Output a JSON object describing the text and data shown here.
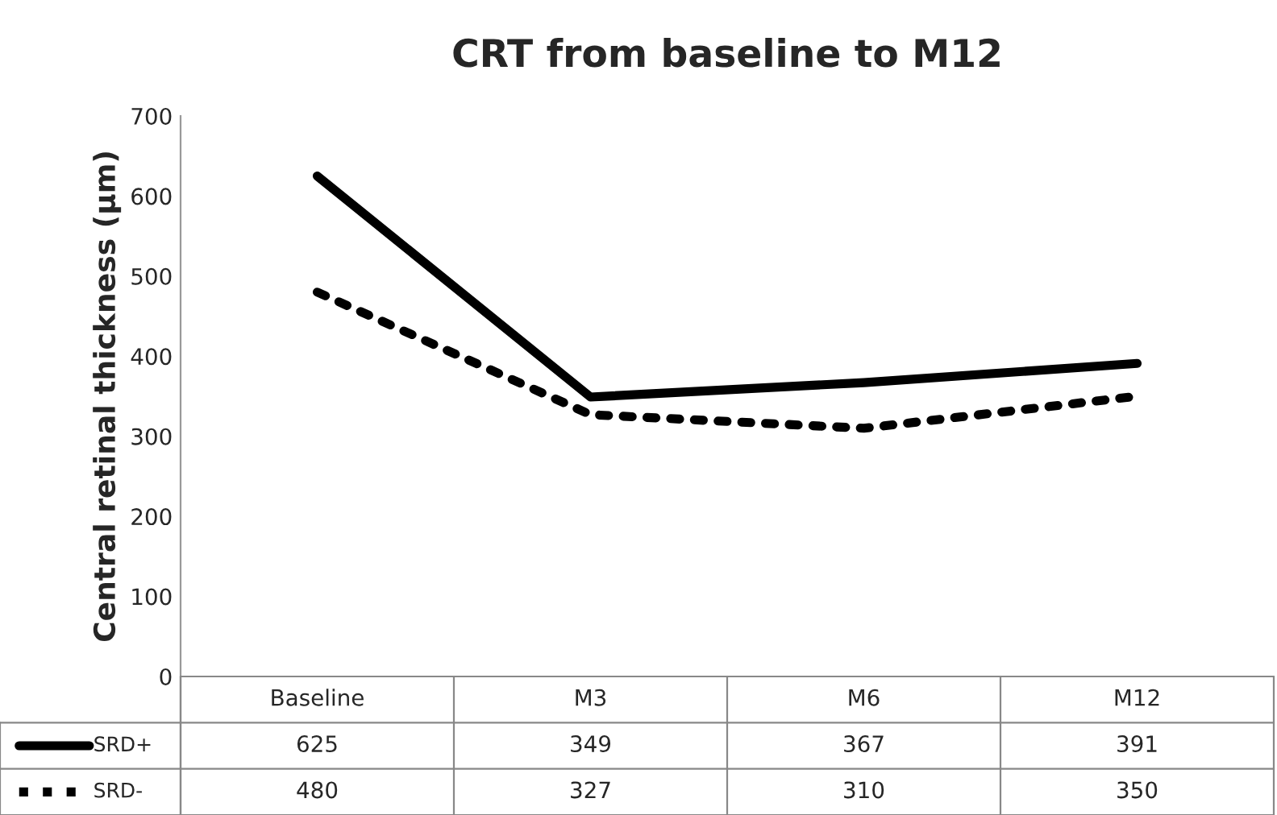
{
  "chart_data": {
    "type": "line",
    "title": "CRT from baseline to M12",
    "ylabel": "Central retinal thickness (µm)",
    "categories": [
      "Baseline",
      "M3",
      "M6",
      "M12"
    ],
    "series": [
      {
        "name": "SRD+",
        "color": "#000000",
        "line_style": "solid",
        "values": [
          625,
          349,
          367,
          391
        ]
      },
      {
        "name": "SRD-",
        "color": "#000000",
        "line_style": "dotted",
        "values": [
          480,
          327,
          310,
          350
        ]
      }
    ],
    "ylim": [
      0,
      700
    ],
    "yticks": [
      0,
      100,
      200,
      300,
      400,
      500,
      600,
      700
    ],
    "grid": false,
    "legend": "bottom",
    "data_labels": true
  }
}
